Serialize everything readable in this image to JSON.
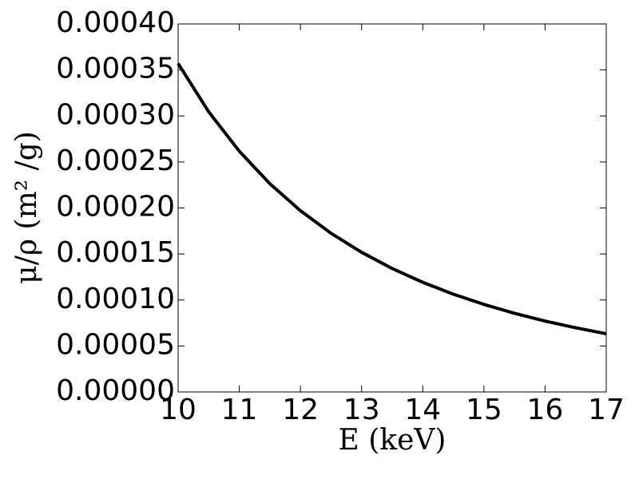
{
  "chart_data": {
    "type": "line",
    "xlabel": "E (keV)",
    "ylabel": "μ/ρ (m² /g)",
    "x": [
      10,
      10.5,
      11,
      11.5,
      12,
      12.5,
      13,
      13.5,
      14,
      14.5,
      15,
      15.5,
      16,
      16.5,
      17
    ],
    "series": [
      {
        "color": "#000000",
        "values": [
          0.000357,
          0.0003045,
          0.0002617,
          0.0002264,
          0.000197,
          0.0001725,
          0.0001518,
          0.0001342,
          0.0001192,
          0.0001063,
          9.52e-05,
          8.55e-05,
          7.71e-05,
          6.98e-05,
          6.33e-05
        ]
      }
    ],
    "xlim": [
      10,
      17
    ],
    "xticks": [
      10,
      11,
      12,
      13,
      14,
      15,
      16,
      17
    ],
    "ylim": [
      0,
      0.0004
    ],
    "yticks": [
      {
        "value": 0,
        "label": "0.00000"
      },
      {
        "value": 5e-05,
        "label": "0.00005"
      },
      {
        "value": 0.0001,
        "label": "0.00010"
      },
      {
        "value": 0.00015,
        "label": "0.00015"
      },
      {
        "value": 0.0002,
        "label": "0.00020"
      },
      {
        "value": 0.00025,
        "label": "0.00025"
      },
      {
        "value": 0.0003,
        "label": "0.00030"
      },
      {
        "value": 0.00035,
        "label": "0.00035"
      },
      {
        "value": 0.0004,
        "label": "0.00040"
      }
    ],
    "grid": false
  }
}
